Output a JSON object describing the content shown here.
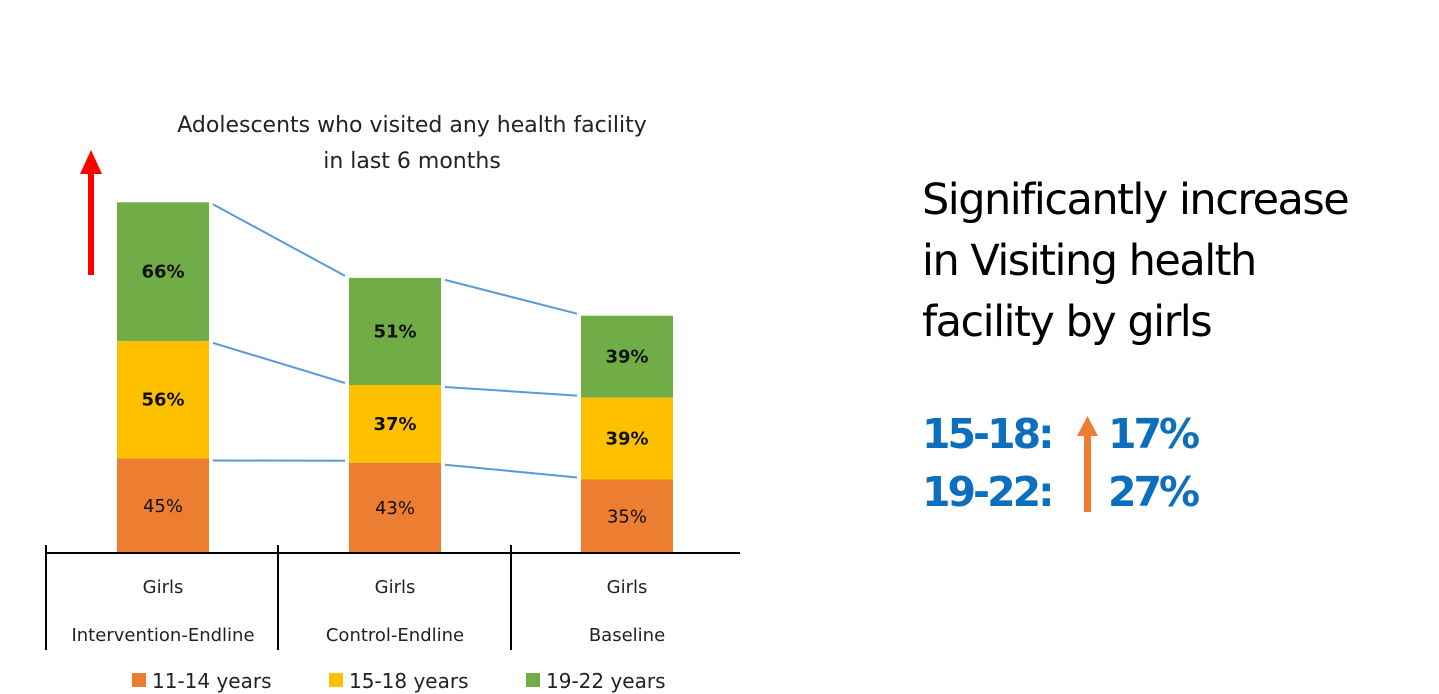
{
  "chart_data": {
    "type": "bar",
    "subtype": "stacked",
    "title": "Adolescents who visited any health facility in last 6 months",
    "title_lines": [
      "Adolescents who visited any health facility",
      "in last 6 months"
    ],
    "categories": [
      {
        "line1": "Girls",
        "line2": "Intervention-Endline"
      },
      {
        "line1": "Girls",
        "line2": "Control-Endline"
      },
      {
        "line1": "Girls",
        "line2": "Baseline"
      }
    ],
    "series": [
      {
        "name": "11-14 years",
        "color": "#ed7d31",
        "values": [
          45,
          43,
          35
        ],
        "labels": [
          "45%",
          "43%",
          "35%"
        ],
        "bold": false
      },
      {
        "name": "15-18 years",
        "color": "#ffc000",
        "values": [
          56,
          37,
          39
        ],
        "labels": [
          "56%",
          "37%",
          "39%"
        ],
        "bold": true
      },
      {
        "name": "19-22 years",
        "color": "#70ad47",
        "values": [
          66,
          51,
          39
        ],
        "labels": [
          "66%",
          "51%",
          "39%"
        ],
        "bold": true
      }
    ],
    "connector_color": "#5b9bd5",
    "legend_position": "bottom",
    "xlabel": "",
    "ylabel": "",
    "grid": false,
    "highlight_arrow": {
      "icon": "up-arrow-icon",
      "color": "#ff0000"
    }
  },
  "side_panel": {
    "headline_lines": [
      "Significantly increase",
      "in Visiting health",
      "facility by girls"
    ],
    "stats": [
      {
        "key": "15-18:",
        "value": "17%"
      },
      {
        "key": "19-22:",
        "value": "27%"
      }
    ],
    "stat_color": "#0c6fbd",
    "arrow_icon": "up-arrow-icon",
    "arrow_color": "#ed7d31"
  }
}
